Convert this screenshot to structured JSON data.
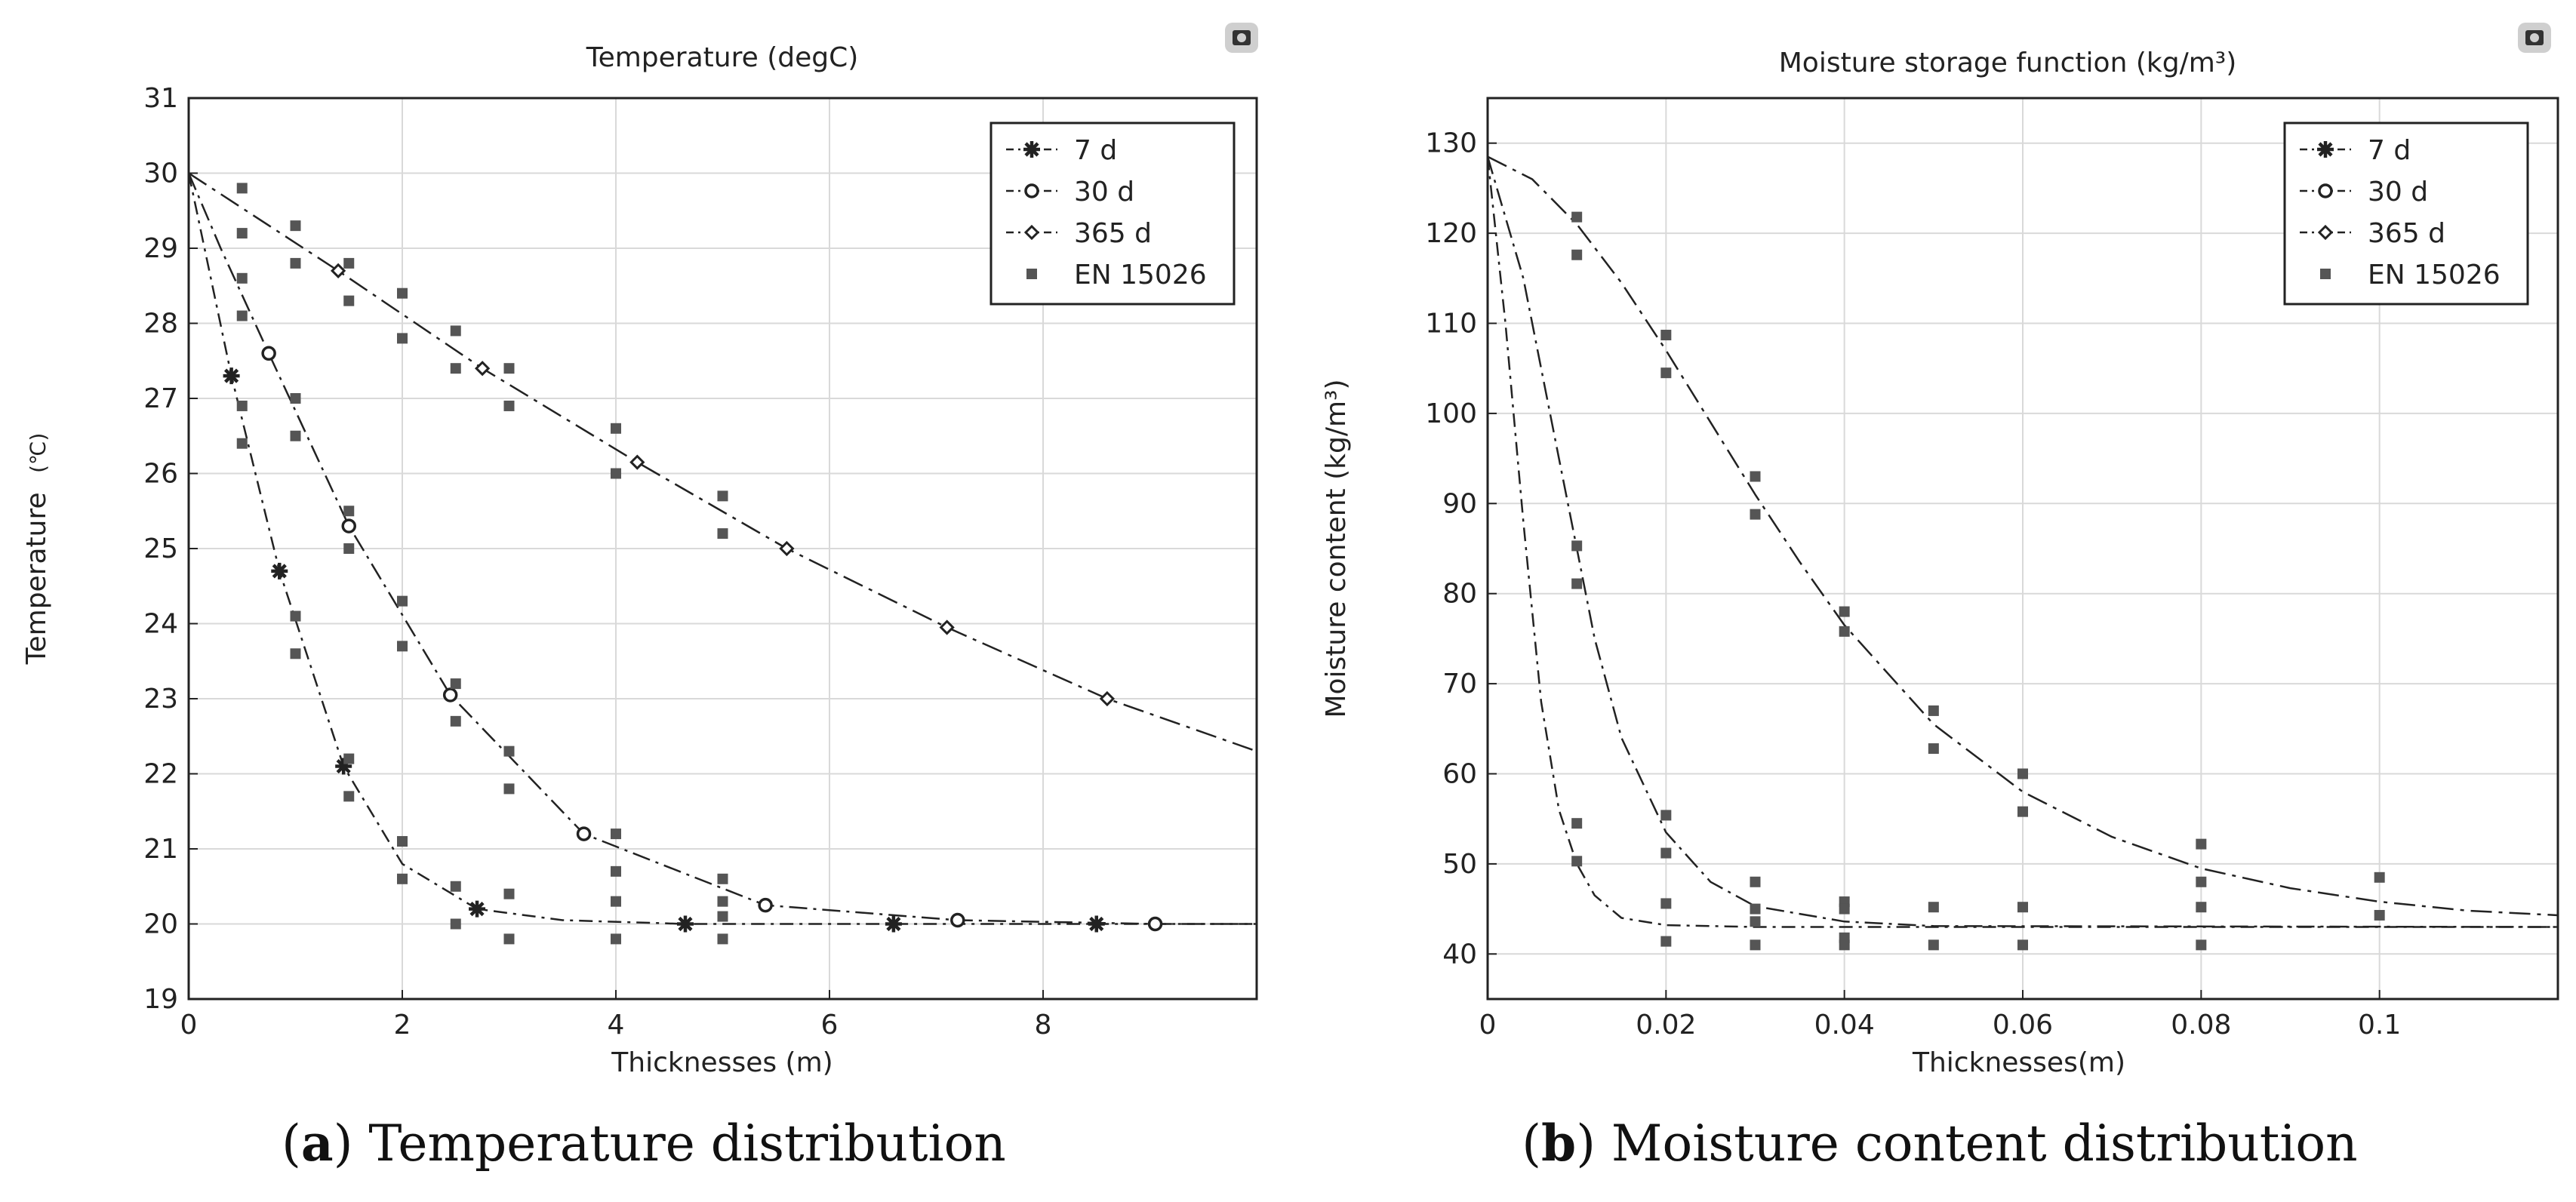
{
  "colors": {
    "line": "#222222",
    "marker_en": "#555555",
    "grid": "#d9d9d9",
    "frame": "#222222"
  },
  "chart_data": [
    {
      "type": "line",
      "title": "Temperature (degC)",
      "xlabel": "Thicknesses  (m)",
      "ylabel": "Temperature",
      "ylabel_unit": "(℃)",
      "xlim": [
        0,
        10
      ],
      "ylim": [
        19,
        31
      ],
      "xticks": [
        0,
        2,
        4,
        6,
        8
      ],
      "xtick_labels": [
        "0",
        "2",
        "4",
        "6",
        "8"
      ],
      "yticks": [
        19,
        20,
        21,
        22,
        23,
        24,
        25,
        26,
        27,
        28,
        29,
        30,
        31
      ],
      "ytick_labels": [
        "19",
        "20",
        "21",
        "22",
        "23",
        "24",
        "25",
        "26",
        "27",
        "28",
        "29",
        "30",
        "31"
      ],
      "grid": true,
      "legend_position": "top-right",
      "legend": [
        {
          "label": "7 d",
          "marker": "star"
        },
        {
          "label": "30 d",
          "marker": "circle"
        },
        {
          "label": "365 d",
          "marker": "diamond"
        },
        {
          "label": "EN 15026",
          "marker": "square"
        }
      ],
      "series": [
        {
          "name": "7 d",
          "marker": "star",
          "x": [
            0,
            0.4,
            0.85,
            1.45,
            2.0,
            2.7,
            3.5,
            4.65,
            6.6,
            8.5,
            10
          ],
          "y": [
            30,
            27.3,
            24.7,
            22.1,
            20.8,
            20.2,
            20.05,
            20.0,
            20.0,
            20.0,
            20.0
          ],
          "marker_x": [
            0.4,
            0.85,
            1.45,
            2.7,
            4.65,
            6.6,
            8.5
          ],
          "marker_y": [
            27.3,
            24.7,
            22.1,
            20.2,
            20.0,
            20.0,
            20.0
          ]
        },
        {
          "name": "30 d",
          "marker": "circle",
          "x": [
            0,
            0.3,
            0.75,
            1.5,
            2.45,
            3.7,
            5.4,
            7.2,
            9.05,
            10
          ],
          "y": [
            30,
            29.0,
            27.6,
            25.3,
            23.05,
            21.2,
            20.25,
            20.05,
            20.0,
            20.0
          ],
          "marker_x": [
            0.75,
            1.5,
            2.45,
            3.7,
            5.4,
            7.2,
            9.05
          ],
          "marker_y": [
            27.6,
            25.3,
            23.05,
            21.2,
            20.25,
            20.05,
            20.0
          ]
        },
        {
          "name": "365 d",
          "marker": "diamond",
          "x": [
            0,
            1.4,
            2.75,
            4.2,
            5.6,
            7.1,
            8.6,
            10
          ],
          "y": [
            30,
            28.7,
            27.4,
            26.15,
            25.0,
            23.95,
            23.0,
            22.3
          ],
          "marker_x": [
            1.4,
            2.75,
            4.2,
            5.6,
            7.1,
            8.6
          ],
          "marker_y": [
            28.7,
            27.4,
            26.15,
            25.0,
            23.95,
            23.0
          ]
        },
        {
          "name": "EN 15026",
          "marker": "square",
          "scatter": true,
          "x": [
            0.5,
            0.5,
            0.5,
            0.5,
            0.5,
            0.5,
            1,
            1,
            1,
            1,
            1,
            1,
            1.5,
            1.5,
            1.5,
            1.5,
            1.5,
            1.5,
            2,
            2,
            2,
            2,
            2,
            2,
            2.5,
            2.5,
            2.5,
            2.5,
            2.5,
            2.5,
            3,
            3,
            3,
            3,
            3,
            3,
            4,
            4,
            4,
            4,
            4,
            4,
            5,
            5,
            5,
            5,
            5,
            5
          ],
          "y": [
            29.8,
            29.2,
            28.6,
            28.1,
            26.9,
            26.4,
            29.3,
            28.8,
            27.0,
            26.5,
            24.1,
            23.6,
            28.8,
            28.3,
            25.5,
            25.0,
            22.2,
            21.7,
            28.4,
            27.8,
            24.3,
            23.7,
            21.1,
            20.6,
            27.9,
            27.4,
            23.2,
            22.7,
            20.5,
            20.0,
            27.4,
            26.9,
            22.3,
            21.8,
            20.4,
            19.8,
            26.6,
            26.0,
            21.2,
            20.7,
            20.3,
            19.8,
            25.7,
            25.2,
            20.6,
            20.3,
            20.1,
            19.8
          ]
        }
      ]
    },
    {
      "type": "line",
      "title": "Moisture storage function (kg/m³)",
      "xlabel": "Thicknesses(m)",
      "ylabel": "Moisture content (kg/m³)",
      "xlim": [
        0,
        0.12
      ],
      "ylim": [
        35,
        135
      ],
      "xticks": [
        0,
        0.02,
        0.04,
        0.06,
        0.08,
        0.1
      ],
      "xtick_labels": [
        "0",
        "0.02",
        "0.04",
        "0.06",
        "0.08",
        "0.1"
      ],
      "yticks": [
        40,
        50,
        60,
        70,
        80,
        90,
        100,
        110,
        120,
        130
      ],
      "ytick_labels": [
        "40",
        "50",
        "60",
        "70",
        "80",
        "90",
        "100",
        "110",
        "120",
        "130"
      ],
      "grid": true,
      "legend_position": "top-right",
      "legend": [
        {
          "label": "7 d",
          "marker": "star"
        },
        {
          "label": "30 d",
          "marker": "circle"
        },
        {
          "label": "365 d",
          "marker": "diamond"
        },
        {
          "label": "EN 15026",
          "marker": "square"
        }
      ],
      "series": [
        {
          "name": "7 d",
          "marker": "none",
          "x": [
            0,
            0.002,
            0.004,
            0.006,
            0.008,
            0.01,
            0.012,
            0.015,
            0.02,
            0.03,
            0.12
          ],
          "y": [
            128.5,
            110,
            88,
            68,
            56,
            50,
            46.5,
            44,
            43.2,
            43.0,
            43.0
          ]
        },
        {
          "name": "30 d",
          "marker": "none",
          "x": [
            0,
            0.004,
            0.008,
            0.01,
            0.012,
            0.015,
            0.02,
            0.025,
            0.03,
            0.04,
            0.05,
            0.12
          ],
          "y": [
            128.5,
            115,
            95,
            85,
            75,
            64,
            53.5,
            48,
            45.3,
            43.6,
            43.1,
            43.0
          ]
        },
        {
          "name": "365 d",
          "marker": "none",
          "x": [
            0,
            0.005,
            0.01,
            0.015,
            0.02,
            0.025,
            0.03,
            0.035,
            0.04,
            0.05,
            0.06,
            0.07,
            0.08,
            0.09,
            0.1,
            0.11,
            0.12
          ],
          "y": [
            128.5,
            126,
            121,
            114.5,
            107,
            99,
            91,
            83.5,
            76.5,
            65.5,
            58,
            53,
            49.5,
            47.3,
            45.8,
            44.8,
            44.3
          ]
        },
        {
          "name": "EN 15026",
          "marker": "square",
          "scatter": true,
          "x": [
            0.01,
            0.01,
            0.01,
            0.01,
            0.01,
            0.01,
            0.02,
            0.02,
            0.02,
            0.02,
            0.02,
            0.02,
            0.03,
            0.03,
            0.03,
            0.03,
            0.03,
            0.03,
            0.04,
            0.04,
            0.04,
            0.04,
            0.04,
            0.04,
            0.05,
            0.05,
            0.05,
            0.05,
            0.06,
            0.06,
            0.06,
            0.06,
            0.08,
            0.08,
            0.08,
            0.08,
            0.1,
            0.1
          ],
          "y": [
            121.8,
            117.6,
            85.3,
            81.1,
            54.5,
            50.3,
            108.7,
            104.5,
            55.4,
            51.2,
            45.6,
            41.4,
            93.0,
            88.8,
            48.0,
            45.0,
            43.6,
            41.0,
            78.0,
            75.8,
            45.8,
            45.0,
            41.8,
            41.0,
            67.0,
            62.8,
            45.2,
            41.0,
            60.0,
            55.8,
            45.2,
            41.0,
            52.2,
            48.0,
            45.2,
            41.0,
            48.5,
            44.3
          ]
        }
      ]
    }
  ],
  "captions": [
    {
      "label": "a",
      "text": " Temperature distribution"
    },
    {
      "label": "b",
      "text": " Moisture content distribution"
    }
  ]
}
